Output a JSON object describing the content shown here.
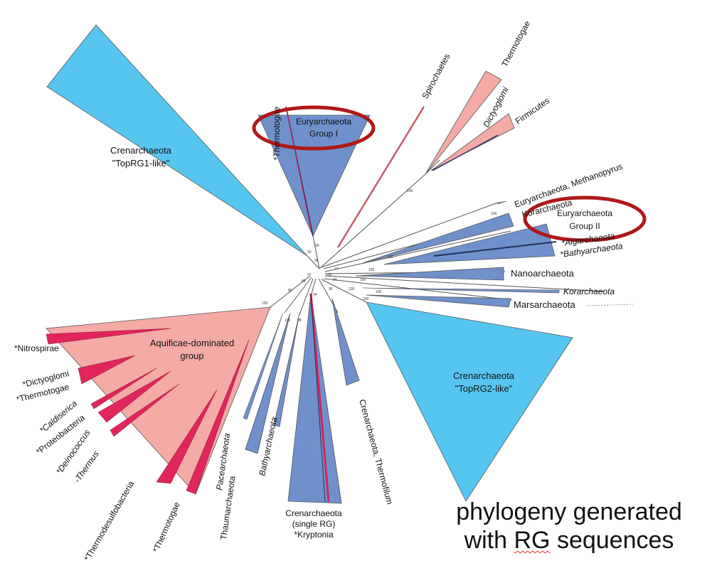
{
  "colors": {
    "crenarchaeota_topRG": "#56c6f0",
    "archaeal_clade": "#7090cc",
    "bacterial_clade": "#f4aaa5",
    "bacterial_dark": "#e0265a",
    "highlight_ring": "#b01818",
    "branch_line": "#555555"
  },
  "clades": {
    "cren_rg1": "Crenarchaeota",
    "cren_rg1_sub": "\"TopRG1-like\"",
    "eury1": "Euryarchaeota",
    "eury1_sub": "Group I",
    "thermotogae_small": "*Thermotogae",
    "spirochaetes": "Spirochaetes",
    "thermotogae": "Thermotogae",
    "dictyoglomi": "Dictyoglomi",
    "firmicutes": "Firmicutes",
    "eury_methanopyrus": "Euryarchaeota, Methanopyrus",
    "korarchaeota_top": "Korarchaeota",
    "eury2": "Euryarchaeota",
    "eury2_sub": "Group II",
    "aigarchaeota": "*Aigarchaeota",
    "bathyarchaeota_right": "*Bathyarchaeota",
    "nanoarchaeota": "Nanoarchaeota",
    "korarchaeota": "Korarchaeota",
    "marsarchaeota": "Marsarchaeota",
    "cren_rg2": "Crenarchaeota",
    "cren_rg2_sub": "\"TopRG2-like\"",
    "cren_thermofilum": "Crenarchaeota, Thermofilum",
    "cren_single": "Crenarchaeota",
    "cren_single_sub": "(single RG)",
    "kryptonia": "*Kryptonia",
    "bathyarchaeota": "Bathyarchaeota",
    "pacearchaeota": "Pacearchaeota",
    "thaumarchaeota": "Thaumarchaeota",
    "aquificae": "Aquificae-dominated",
    "aquificae_sub": "group",
    "nitrospirae": "*Nitrospirae",
    "dictyoglomi_left": "*Dictyoglomi",
    "thermotogae_left": "*Thermotogae",
    "caldiserica": "*Caldiserica",
    "proteobacteria": "*Proteobacteria",
    "deinococcus": "*Deinococcus",
    "thermus": "-Thermus",
    "thermodesulfobacteria": "*Thermodesulfobacteria",
    "thermotogae_bottom": "*Thermotogae"
  },
  "bootstrap": {
    "b1": "100",
    "b2": "100",
    "b3": "100",
    "b4": "100",
    "b5": "100",
    "b6": "100",
    "b7": "100",
    "b8": "100",
    "b9": "100",
    "b10": "100",
    "b11": "99",
    "b12": "93",
    "b13": "98",
    "b14": "77",
    "b15": "86",
    "b16": "88",
    "b17": "97",
    "b18": "94",
    "b19": "96",
    "b20": "94",
    "b21": "100",
    "b22": "98"
  },
  "caption": {
    "line1": "phylogeny generated",
    "line2_prefix": "with ",
    "line2_rg": "RG",
    "line2_suffix": " sequences"
  }
}
